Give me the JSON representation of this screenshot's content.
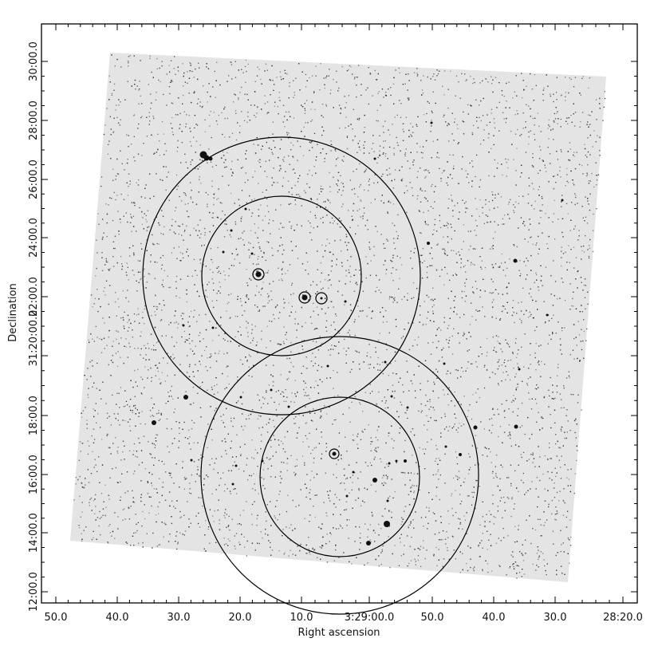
{
  "figure": {
    "xlabel": "Right ascension",
    "ylabel": "Declination",
    "ra_ticks": [
      "50.0",
      "40.0",
      "30.0",
      "20.0",
      "10.0",
      "3:29:00.0",
      "50.0",
      "40.0",
      "30.0",
      "28:20.0"
    ],
    "dec_ticks": [
      "12:00.0",
      "14:00.0",
      "16:00.0",
      "18:00.0",
      "31:20:00.0",
      "22:00.0",
      "24:00.0",
      "26:00.0",
      "28:00.0",
      "30:00.0"
    ]
  }
}
